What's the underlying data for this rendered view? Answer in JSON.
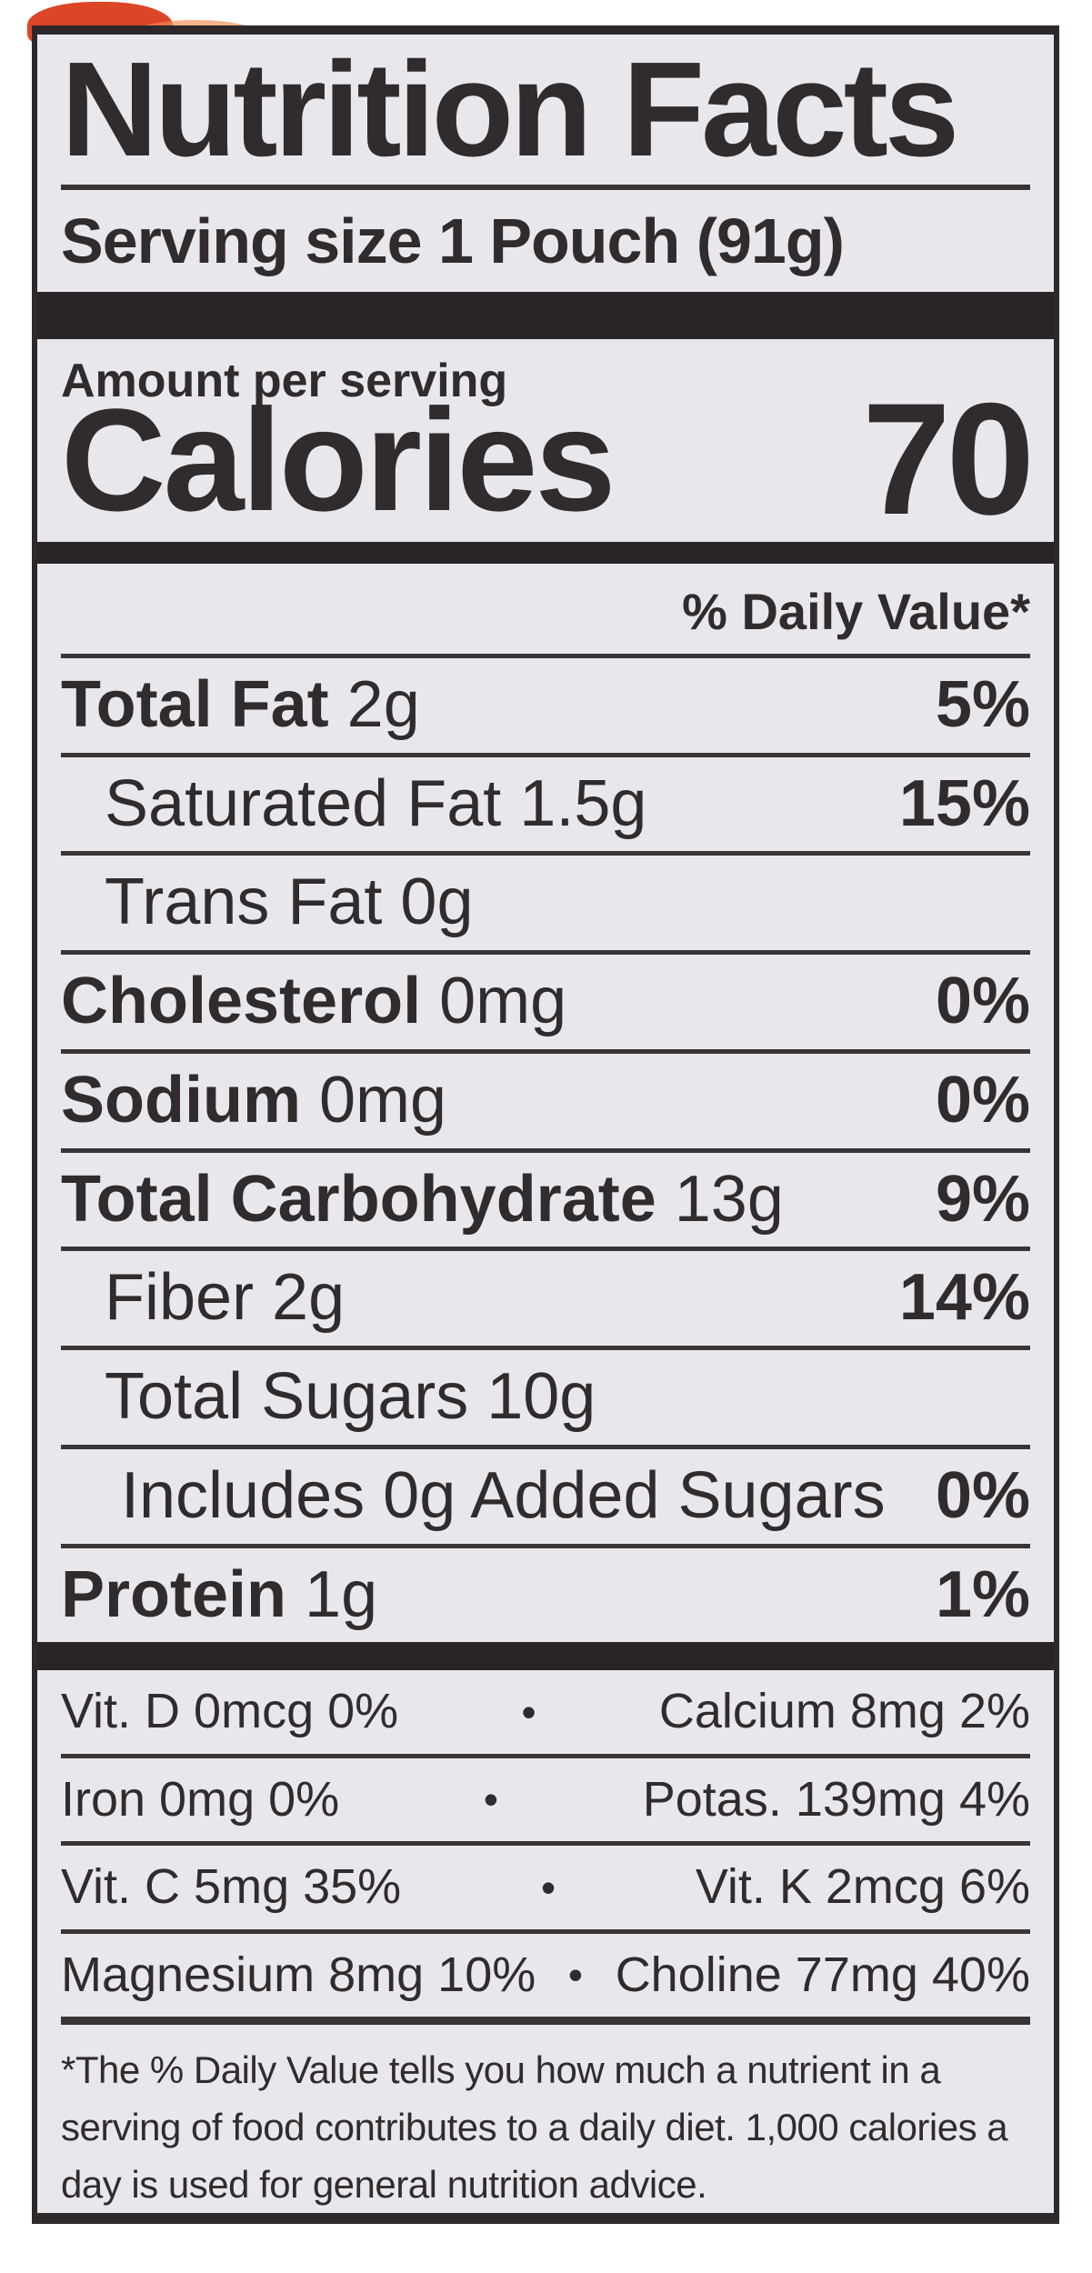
{
  "label": {
    "title": "Nutrition Facts",
    "serving_size": "Serving size 1 Pouch (91g)",
    "amount_per_serving": "Amount per serving",
    "calories_label": "Calories",
    "calories_value": "70",
    "daily_value_header": "% Daily Value*",
    "nutrients": [
      {
        "name": "Total Fat",
        "amount": "2g",
        "daily_value": "5%",
        "bold": true,
        "indent": 0
      },
      {
        "name": "Saturated Fat",
        "amount": "1.5g",
        "daily_value": "15%",
        "bold": false,
        "indent": 1
      },
      {
        "name": "Trans Fat",
        "amount": "0g",
        "daily_value": "",
        "bold": false,
        "indent": 1
      },
      {
        "name": "Cholesterol",
        "amount": "0mg",
        "daily_value": "0%",
        "bold": true,
        "indent": 0
      },
      {
        "name": "Sodium",
        "amount": "0mg",
        "daily_value": "0%",
        "bold": true,
        "indent": 0
      },
      {
        "name": "Total Carbohydrate",
        "amount": "13g",
        "daily_value": "9%",
        "bold": true,
        "indent": 0
      },
      {
        "name": "Fiber",
        "amount": "2g",
        "daily_value": "14%",
        "bold": false,
        "indent": 1
      },
      {
        "name": "Total Sugars",
        "amount": "10g",
        "daily_value": "",
        "bold": false,
        "indent": 1
      },
      {
        "name": "Includes 0g Added Sugars",
        "amount": "",
        "daily_value": "0%",
        "bold": false,
        "indent": 2
      },
      {
        "name": "Protein",
        "amount": "1g",
        "daily_value": "1%",
        "bold": true,
        "indent": 0
      }
    ],
    "micronutrients": [
      {
        "left": "Vit. D 0mcg 0%",
        "right": "Calcium 8mg 2%"
      },
      {
        "left": "Iron 0mg 0%",
        "right": "Potas. 139mg 4%"
      },
      {
        "left": "Vit. C 5mg 35%",
        "right": "Vit. K 2mcg 6%"
      },
      {
        "left": "Magnesium 8mg 10%",
        "right": "Choline 77mg 40%"
      }
    ],
    "footnote": "*The % Daily Value tells you how much a nutrient in a serving of food contributes to a daily diet. 1,000 calories a day is used for general nutrition advice.",
    "colors": {
      "label_background": "#e9e7ee",
      "ink": "#322b2d",
      "bar": "#2a2427",
      "accent_red": "#dd4527",
      "accent_orange": "#ef8a4e"
    }
  }
}
